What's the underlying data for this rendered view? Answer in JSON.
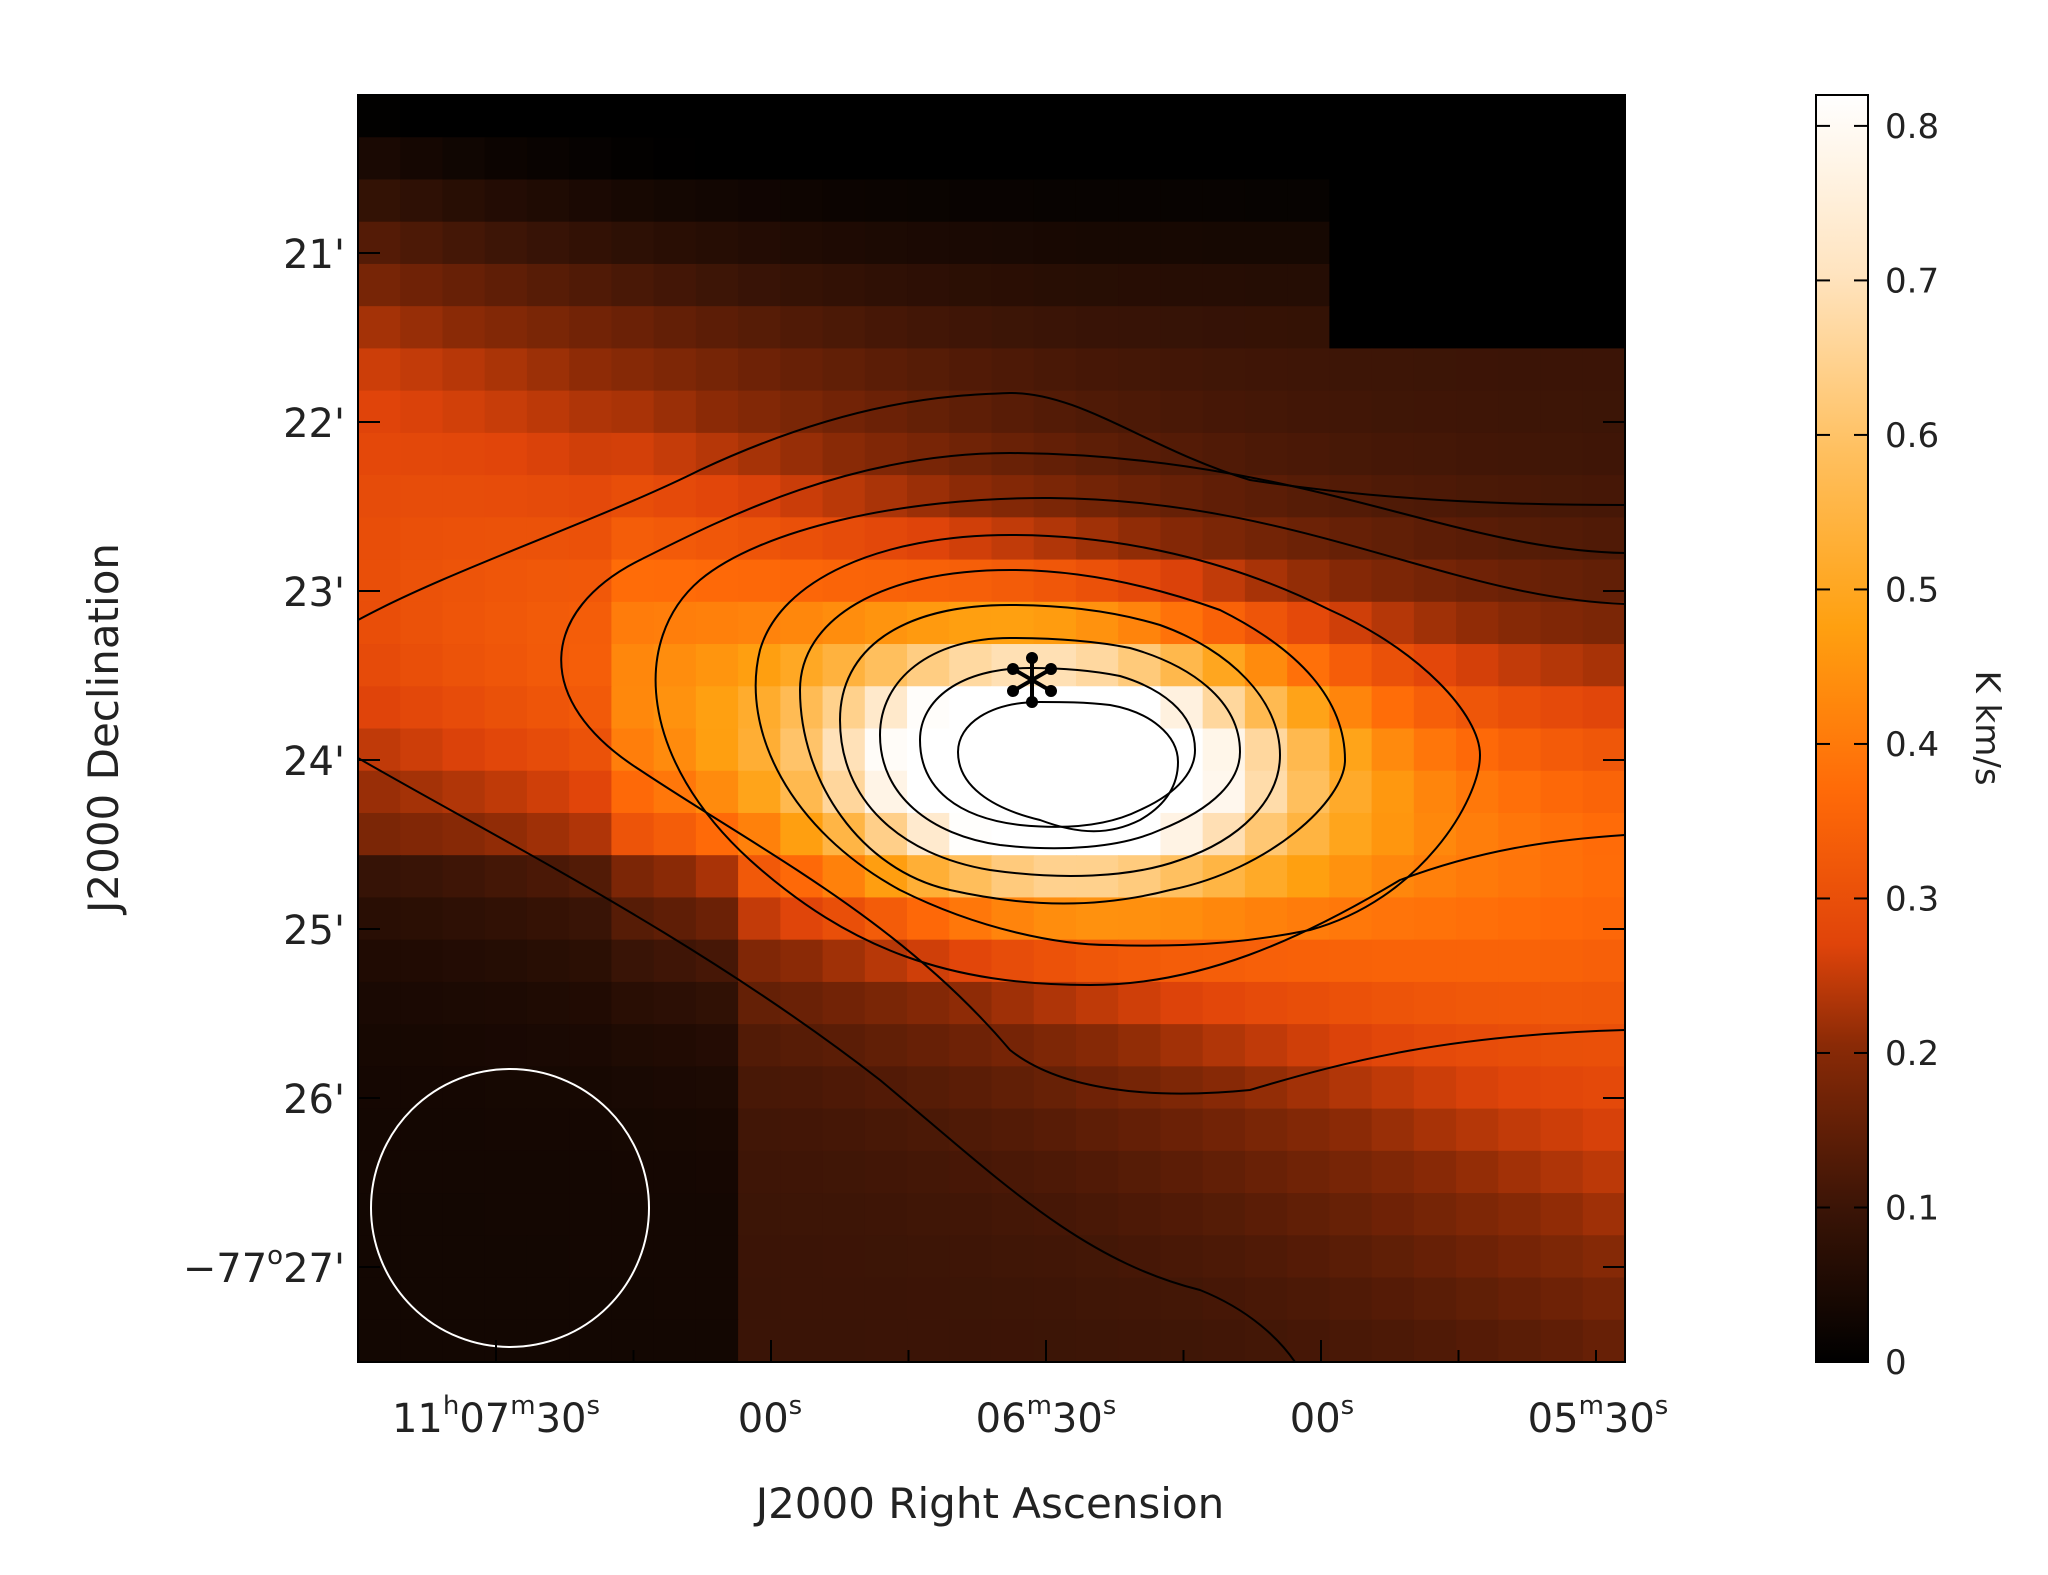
{
  "chart_data": {
    "type": "heatmap",
    "xlabel": "J2000 Right Ascension",
    "ylabel": "J2000 Declination",
    "colorbar": {
      "label": "K km/s",
      "range": [
        0,
        0.82
      ],
      "ticks": [
        "0",
        "0.1",
        "0.2",
        "0.3",
        "0.4",
        "0.5",
        "0.6",
        "0.7",
        "0.8"
      ],
      "colormap": [
        "#000000",
        "#3a1406",
        "#8a2a06",
        "#e0440a",
        "#ff6a08",
        "#ffa010",
        "#ffc060",
        "#ffe4c0",
        "#ffffff"
      ]
    },
    "x_ticks": [
      {
        "value": "11h07m30s",
        "h": "11",
        "m": "07",
        "s": "30"
      },
      {
        "value": "00s",
        "h": "",
        "m": "",
        "s": "00"
      },
      {
        "value": "06m30s",
        "h": "",
        "m": "06",
        "s": "30"
      },
      {
        "value": "00s",
        "h": "",
        "m": "",
        "s": "00"
      },
      {
        "value": "05m30s",
        "h": "",
        "m": "05",
        "s": "30"
      }
    ],
    "y_ticks": [
      {
        "value": "21'",
        "deg": "",
        "min": "21"
      },
      {
        "value": "22'",
        "deg": "",
        "min": "22"
      },
      {
        "value": "23'",
        "deg": "",
        "min": "23"
      },
      {
        "value": "24'",
        "deg": "",
        "min": "24"
      },
      {
        "value": "25'",
        "deg": "",
        "min": "25"
      },
      {
        "value": "26'",
        "deg": "",
        "min": "26"
      },
      {
        "value": "-77°27'",
        "deg": "−77",
        "min": "27"
      }
    ],
    "peak": {
      "ra": "11h06m27s",
      "dec": "-77°24'",
      "value": 0.8
    },
    "source_marker": {
      "symbol": "*",
      "ra": "11h06m31s",
      "dec": "-77°23.6'"
    },
    "beam": {
      "shape": "circle",
      "color": "#ffffff"
    },
    "contour_color": "#000000"
  }
}
